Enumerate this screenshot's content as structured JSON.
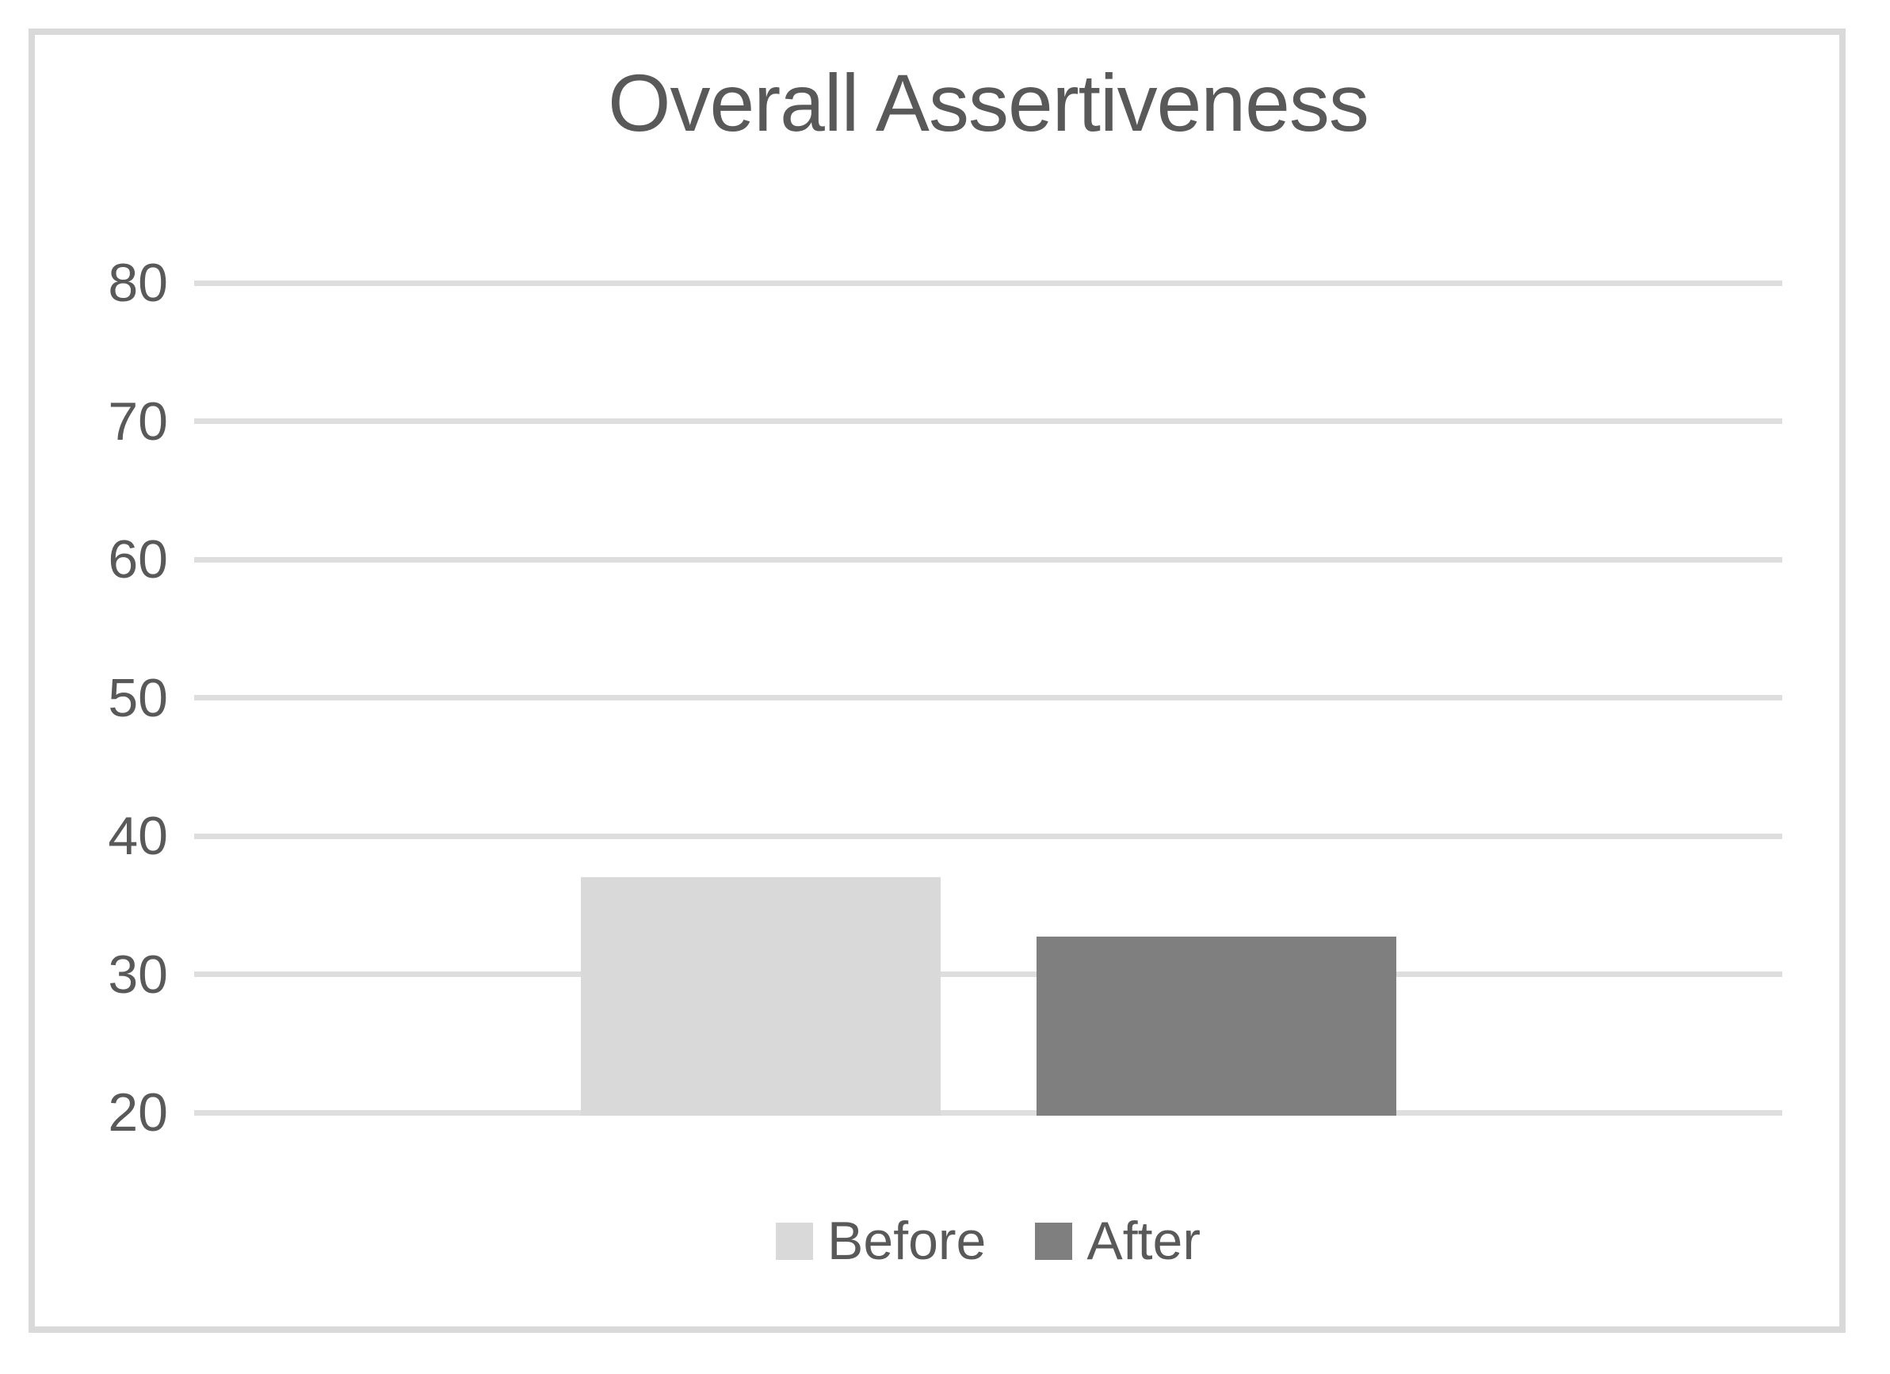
{
  "chart_data": {
    "type": "bar",
    "title": "Overall Assertiveness",
    "categories": [
      ""
    ],
    "series": [
      {
        "name": "Before",
        "values": [
          37
        ],
        "color": "#D9D9D9"
      },
      {
        "name": "After",
        "values": [
          32.7
        ],
        "color": "#7F7F7F"
      }
    ],
    "xlabel": "",
    "ylabel": "",
    "ylim": [
      20,
      80
    ],
    "yticks": [
      80,
      70,
      60,
      50,
      40,
      30,
      20
    ],
    "grid": "horizontal-only",
    "legend_position": "bottom-center"
  },
  "colors": {
    "title_text": "#595959",
    "axis_text": "#595959",
    "gridline": "#DEDEDE",
    "frame_border": "#D9D9D9",
    "background": "#FFFFFF"
  }
}
